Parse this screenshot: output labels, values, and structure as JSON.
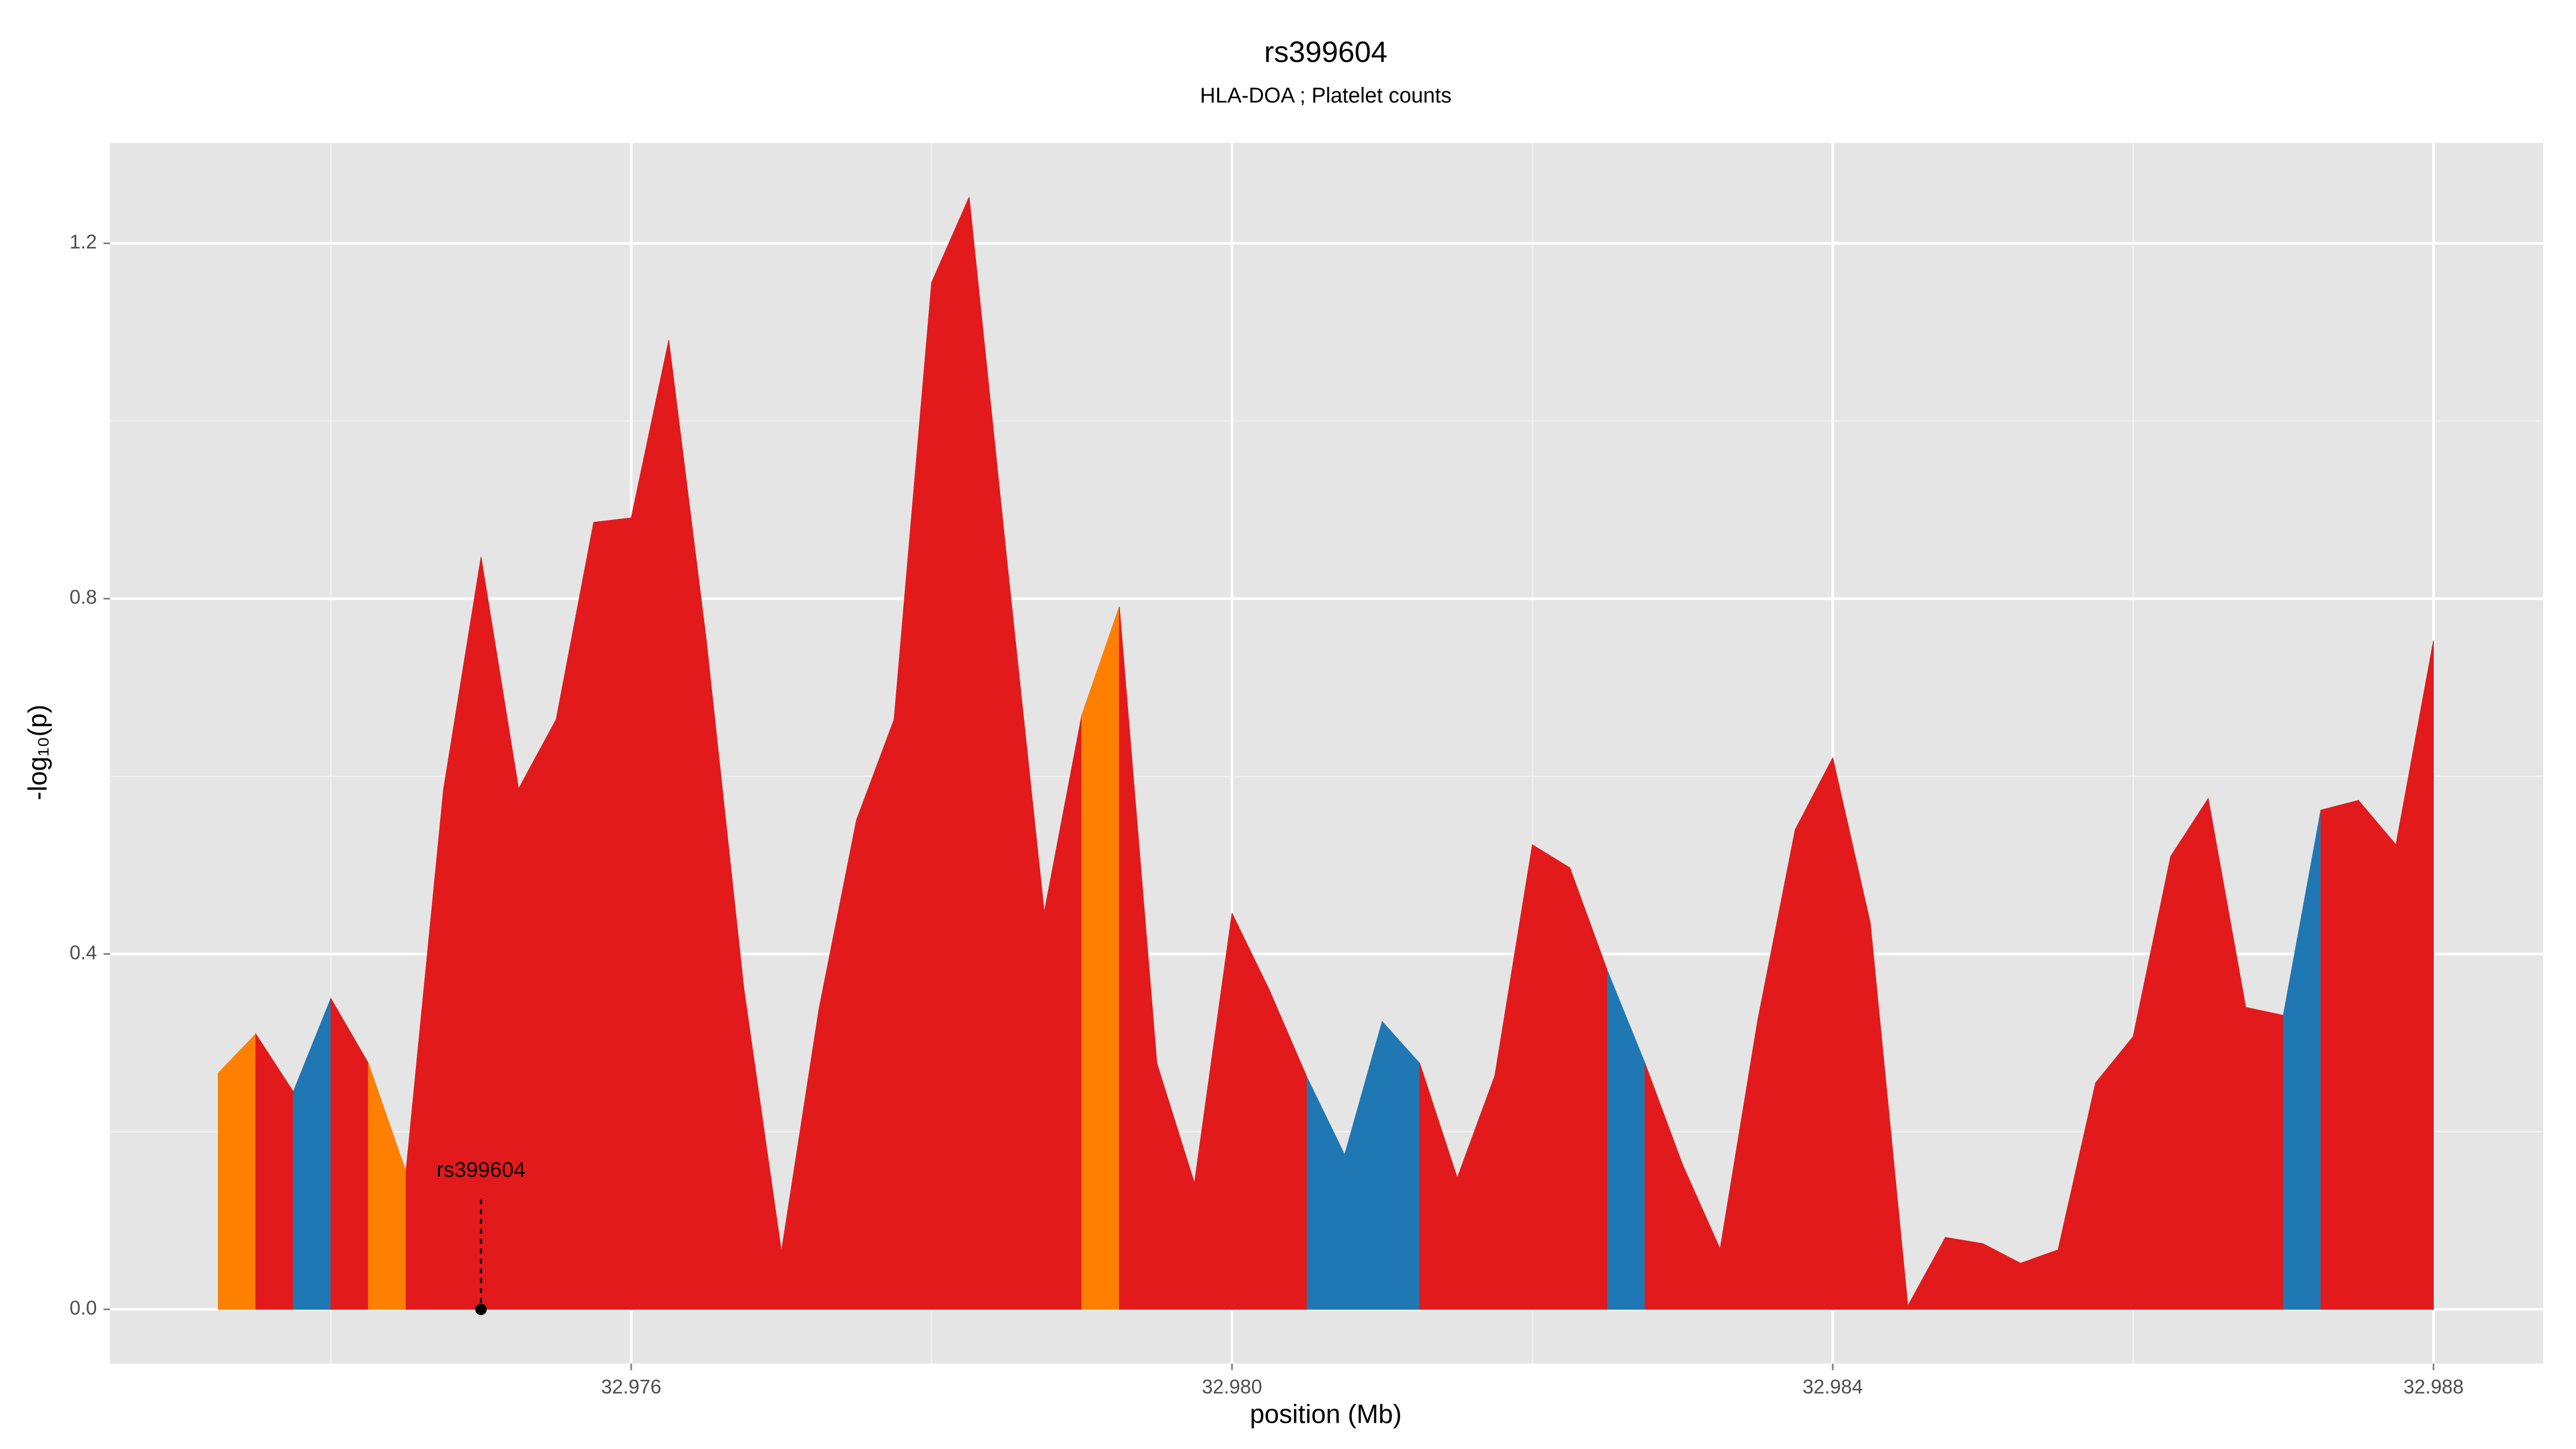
{
  "chart_data": {
    "type": "area",
    "title": "rs399604",
    "subtitle": "HLA-DOA ; Platelet counts",
    "x_label": "position (Mb)",
    "y_label": "-log₁₀(p)",
    "x": [
      32.97325,
      32.9735,
      32.97375,
      32.974,
      32.97425,
      32.9745,
      32.97475,
      32.975,
      32.97525,
      32.9755,
      32.97575,
      32.976,
      32.97625,
      32.9765,
      32.97675,
      32.977,
      32.97725,
      32.9775,
      32.97775,
      32.978,
      32.97825,
      32.9785,
      32.97875,
      32.979,
      32.97925,
      32.9795,
      32.97975,
      32.98,
      32.98025,
      32.9805,
      32.98075,
      32.981,
      32.98125,
      32.9815,
      32.98175,
      32.982,
      32.98225,
      32.9825,
      32.98275,
      32.983,
      32.98325,
      32.9835,
      32.98375,
      32.984,
      32.98425,
      32.9845,
      32.98475,
      32.985,
      32.98525,
      32.9855,
      32.98575,
      32.986,
      32.98625,
      32.9865,
      32.98675,
      32.987,
      32.98725,
      32.9875,
      32.98775,
      32.988
    ],
    "values": [
      0.266,
      0.31,
      0.245,
      0.35,
      0.277,
      0.155,
      0.585,
      0.847,
      0.586,
      0.664,
      0.886,
      0.891,
      1.091,
      0.753,
      0.361,
      0.065,
      0.338,
      0.551,
      0.664,
      1.156,
      1.252,
      0.845,
      0.447,
      0.669,
      0.791,
      0.277,
      0.142,
      0.446,
      0.359,
      0.261,
      0.174,
      0.324,
      0.277,
      0.148,
      0.263,
      0.523,
      0.497,
      0.381,
      0.277,
      0.163,
      0.068,
      0.325,
      0.54,
      0.621,
      0.435,
      0.004,
      0.081,
      0.074,
      0.052,
      0.067,
      0.255,
      0.307,
      0.51,
      0.575,
      0.34,
      0.331,
      0.562,
      0.573,
      0.523,
      0.753
    ],
    "segment_colors": [
      "#ff7f00",
      "#e31a1c",
      "#1f78b4",
      "#e31a1c",
      "#ff7f00",
      "#e31a1c",
      "#e31a1c",
      "#e31a1c",
      "#e31a1c",
      "#e31a1c",
      "#e31a1c",
      "#e31a1c",
      "#e31a1c",
      "#e31a1c",
      "#e31a1c",
      "#e31a1c",
      "#e31a1c",
      "#e31a1c",
      "#e31a1c",
      "#e31a1c",
      "#e31a1c",
      "#e31a1c",
      "#e31a1c",
      "#ff7f00",
      "#e31a1c",
      "#e31a1c",
      "#e31a1c",
      "#e31a1c",
      "#e31a1c",
      "#1f78b4",
      "#1f78b4",
      "#1f78b4",
      "#e31a1c",
      "#e31a1c",
      "#e31a1c",
      "#e31a1c",
      "#e31a1c",
      "#1f78b4",
      "#e31a1c",
      "#e31a1c",
      "#e31a1c",
      "#e31a1c",
      "#e31a1c",
      "#e31a1c",
      "#e31a1c",
      "#e31a1c",
      "#e31a1c",
      "#e31a1c",
      "#e31a1c",
      "#e31a1c",
      "#e31a1c",
      "#e31a1c",
      "#e31a1c",
      "#e31a1c",
      "#e31a1c",
      "#1f78b4",
      "#e31a1c",
      "#e31a1c",
      "#e31a1c"
    ],
    "annotation": {
      "text": "rs399604",
      "x": 32.975,
      "y": 0
    },
    "xlim": [
      32.97253,
      32.98873
    ],
    "ylim": [
      -0.061,
      1.313
    ],
    "xticks": [
      32.976,
      {
        "value": 32.98,
        "label": "32.980"
      },
      32.984,
      32.988
    ],
    "yticks": [
      {
        "value": 0,
        "label": "0.0"
      },
      0.4,
      0.8,
      1.2
    ],
    "x_minor_grid": [
      32.974,
      32.978,
      32.982,
      32.986
    ],
    "y_minor_grid": [
      0.2,
      0.6,
      1.0
    ],
    "grid": true
  }
}
